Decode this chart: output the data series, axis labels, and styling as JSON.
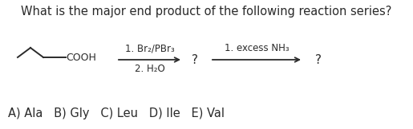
{
  "title": "What is the major end product of the following reaction series?",
  "title_fontsize": 10.5,
  "title_fontweight": "normal",
  "background_color": "#ffffff",
  "arrow1_label_top": "1. Br₂/PBr₃",
  "arrow1_label_bottom": "2. H₂O",
  "arrow2_label_top": "1. excess NH₃",
  "question_mark1": "?",
  "question_mark2": "?",
  "choices": "A) Ala   B) Gly   C) Leu   D) Ile   E) Val",
  "choices_fontsize": 10.5,
  "label_fontsize": 8.5,
  "text_color": "#2a2a2a"
}
